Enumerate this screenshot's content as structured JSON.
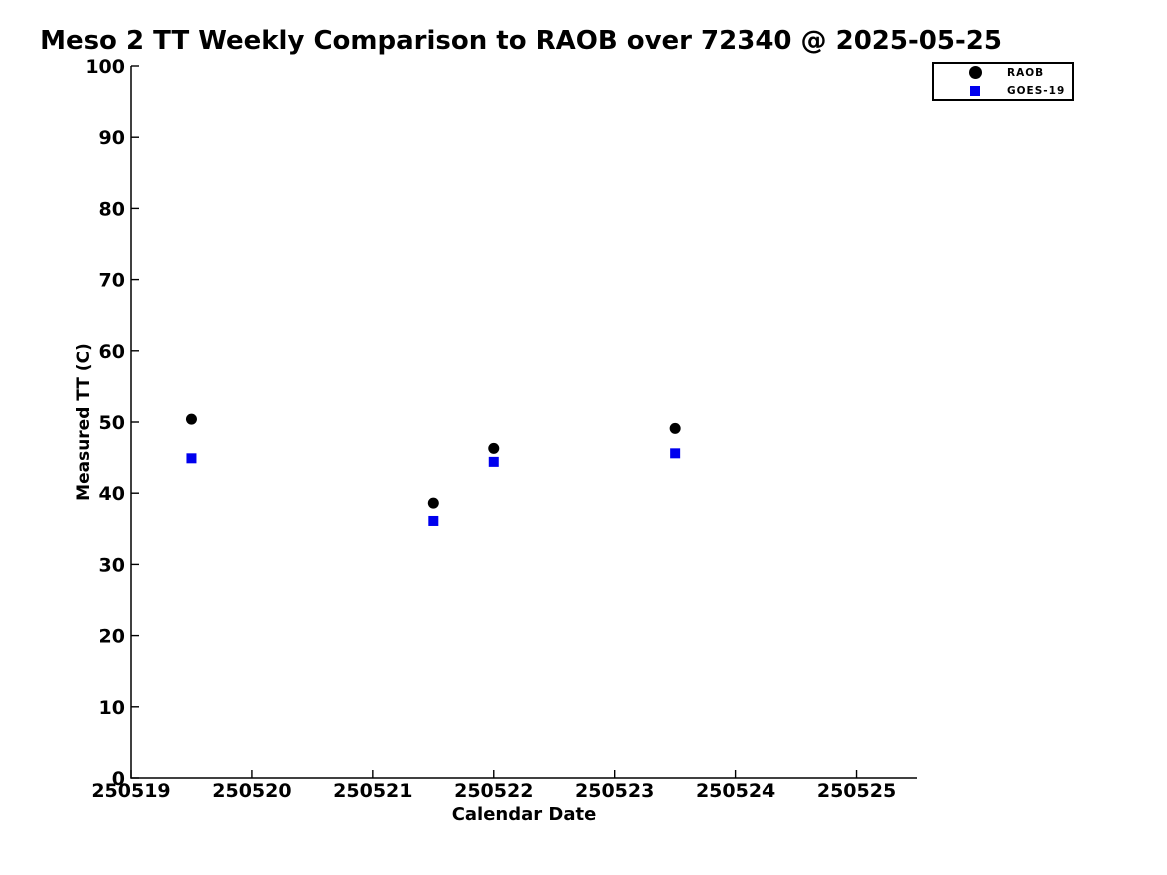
{
  "chart_data": {
    "type": "scatter",
    "title": "Meso 2 TT Weekly Comparison to RAOB over 72340 @ 2025-05-25",
    "xlabel": "Calendar Date",
    "ylabel": "Measured TT (C)",
    "xlim": [
      250519,
      250525.5
    ],
    "ylim": [
      0,
      100
    ],
    "xticks": [
      250519,
      250520,
      250521,
      250522,
      250523,
      250524,
      250525
    ],
    "yticks": [
      0,
      10,
      20,
      30,
      40,
      50,
      60,
      70,
      80,
      90,
      100
    ],
    "grid": false,
    "legend_position": "top-right",
    "axis_color": "#000000",
    "background_color": "#ffffff",
    "series": [
      {
        "name": "RAOB",
        "marker": "circle",
        "color": "#000000",
        "x": [
          250519.5,
          250521.5,
          250522.0,
          250523.5
        ],
        "y": [
          50.4,
          38.6,
          46.3,
          49.1
        ]
      },
      {
        "name": "GOES-19",
        "marker": "square",
        "color": "#0000ee",
        "x": [
          250519.5,
          250521.5,
          250522.0,
          250523.5
        ],
        "y": [
          44.9,
          36.1,
          44.4,
          45.6
        ]
      }
    ]
  }
}
